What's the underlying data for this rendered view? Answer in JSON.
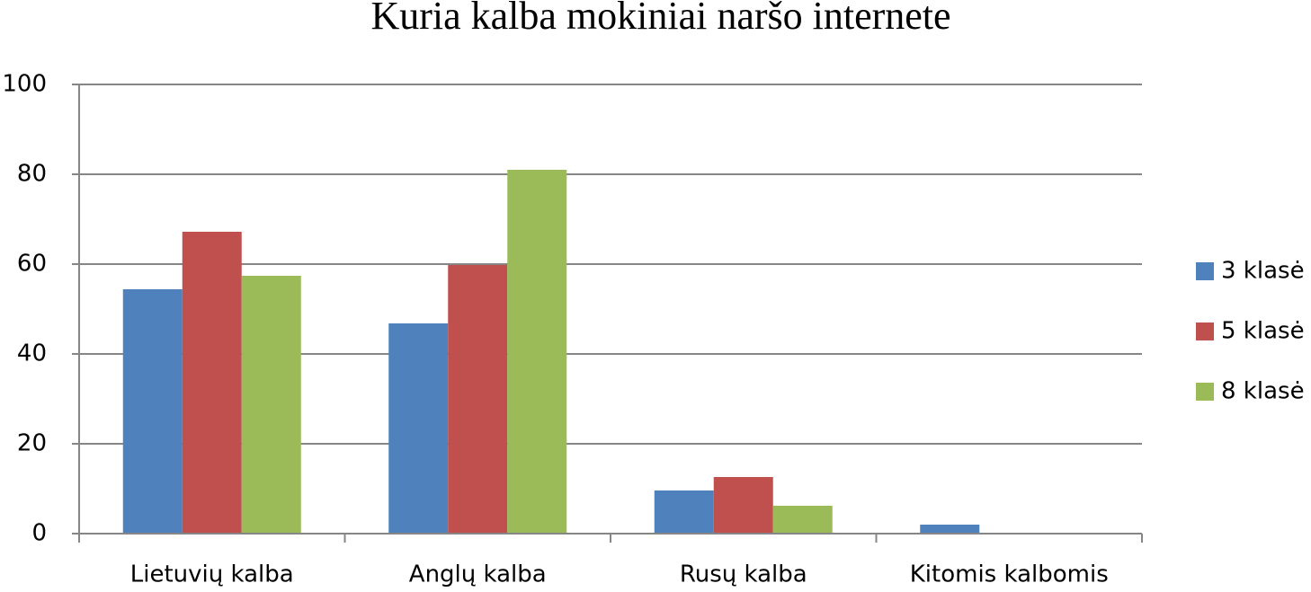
{
  "chart_data": {
    "type": "bar",
    "title": "Kuria kalba mokiniai naršo internete",
    "categories": [
      "Lietuvių kalba",
      "Anglų kalba",
      "Rusų kalba",
      "Kitomis kalbomis"
    ],
    "series": [
      {
        "name": "3 klasė",
        "color": "#4f81bd",
        "values": [
          54.4,
          46.8,
          9.6,
          2
        ]
      },
      {
        "name": "5 klasė",
        "color": "#c0504d",
        "values": [
          67.2,
          59.8,
          12.6,
          0
        ]
      },
      {
        "name": "8 klasė",
        "color": "#9bbb59",
        "values": [
          57.4,
          81,
          6.2,
          0
        ]
      }
    ],
    "ylim": [
      0,
      100
    ],
    "yticks": [
      0,
      20,
      40,
      60,
      80,
      100
    ],
    "grid": true,
    "legend": "right"
  }
}
